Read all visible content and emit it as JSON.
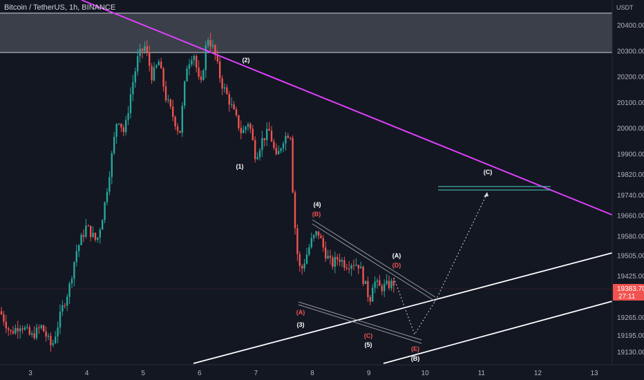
{
  "header": {
    "symbol": "Bitcoin / TetherUS, 1h, BINANCE"
  },
  "price_axis": {
    "currency": "USDT",
    "ticks": [
      20400,
      20300,
      20200,
      20100,
      20000,
      19900,
      19820,
      19740,
      19660,
      19580,
      19505,
      19425,
      19265,
      19195,
      19130
    ],
    "tick_labels": [
      "20400.00",
      "20300.00",
      "20200.00",
      "20100.00",
      "20000.00",
      "19900.00",
      "19820.00",
      "19740.00",
      "19660.00",
      "19580.00",
      "19505.00",
      "19425.00",
      "19265.00",
      "19195.00",
      "19130.00"
    ],
    "last_price": "19383.70",
    "countdown": "27:11"
  },
  "time_axis": {
    "labels": [
      "3",
      "4",
      "5",
      "6",
      "7",
      "8",
      "9",
      "10",
      "11",
      "12",
      "13"
    ]
  },
  "colors": {
    "background": "#131722",
    "up": "#26a69a",
    "down": "#ef5350",
    "trendline": "#e040fb",
    "channel": "#ffffff",
    "zone": "#434651",
    "target": "#4dd0c4"
  },
  "chart_data": {
    "type": "candlestick",
    "title": "Bitcoin / TetherUS, 1h, BINANCE",
    "ylim": [
      19100,
      20480
    ],
    "resistance_zone": [
      20300,
      20455
    ],
    "wave_labels": [
      {
        "text": "(1)",
        "color": "white"
      },
      {
        "text": "(2)",
        "color": "white"
      },
      {
        "text": "(3)",
        "color": "white"
      },
      {
        "text": "(4)",
        "color": "white"
      },
      {
        "text": "(5)",
        "color": "white"
      },
      {
        "text": "(A)",
        "color": "red"
      },
      {
        "text": "(B)",
        "color": "red"
      },
      {
        "text": "(C)",
        "color": "red"
      },
      {
        "text": "(D)",
        "color": "red"
      },
      {
        "text": "(E)",
        "color": "red"
      },
      {
        "text": "(A)",
        "color": "white"
      },
      {
        "text": "(B)",
        "color": "white"
      },
      {
        "text": "(C)",
        "color": "white"
      }
    ]
  }
}
